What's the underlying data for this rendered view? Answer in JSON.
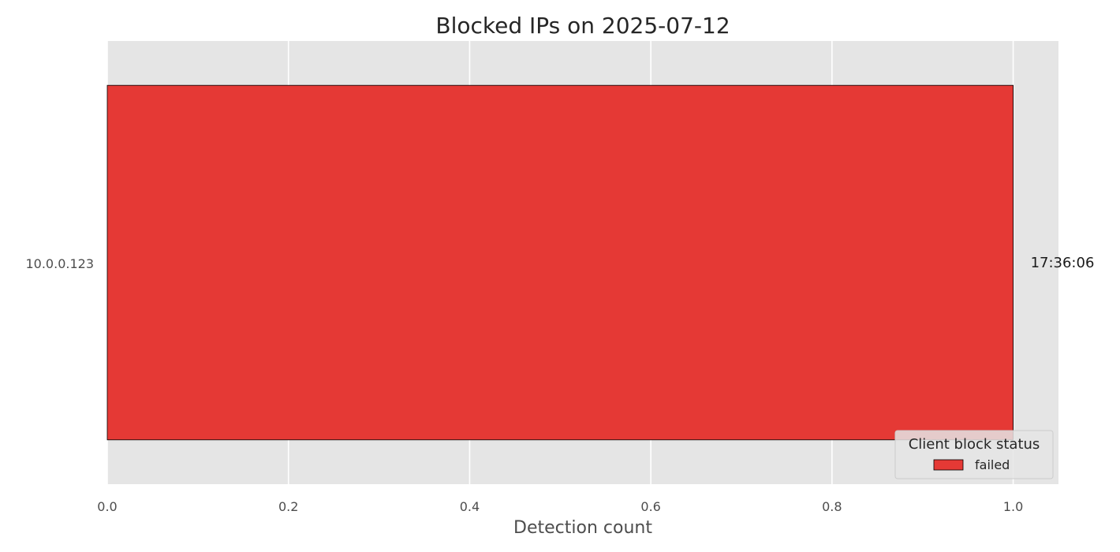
{
  "chart_data": {
    "type": "bar",
    "orientation": "horizontal",
    "title": "Blocked IPs on 2025-07-12",
    "xlabel": "Detection count",
    "ylabel": "",
    "categories": [
      "10.0.0.123"
    ],
    "series": [
      {
        "name": "failed",
        "values": [
          1.0
        ],
        "color": "#e53935"
      }
    ],
    "bar_labels": [
      "17:36:06"
    ],
    "xlim": [
      0,
      1.05
    ],
    "xticks": [
      0.0,
      0.2,
      0.4,
      0.6,
      0.8,
      1.0
    ],
    "xtick_labels": [
      "0.0",
      "0.2",
      "0.4",
      "0.6",
      "0.8",
      "1.0"
    ],
    "grid": true,
    "legend": {
      "title": "Client block status",
      "placement": "lower-right",
      "entries": [
        "failed"
      ]
    },
    "colors": {
      "plot_background": "#e5e5e5",
      "grid": "#ffffff",
      "bar_edge": "#000000"
    }
  }
}
